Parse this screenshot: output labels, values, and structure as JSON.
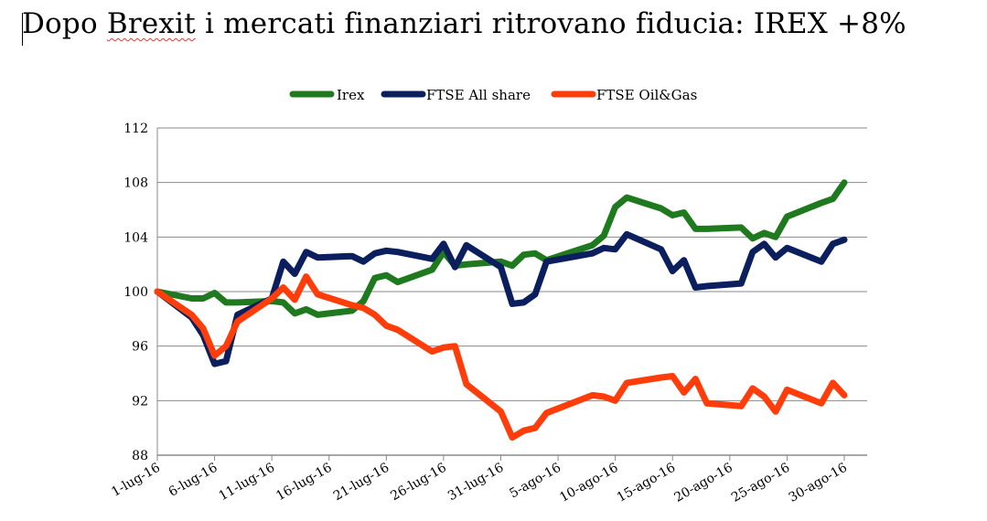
{
  "title_parts": {
    "a": "Dopo ",
    "b": "Brexit",
    "c": " i mercati finanziari ritrovano fiducia: IREX +8%"
  },
  "chart_data": {
    "type": "line",
    "title": "Dopo Brexit i mercati finanziari ritrovano fiducia: IREX +8%",
    "xlabel": "",
    "ylabel": "",
    "ylim": [
      88,
      112
    ],
    "yticks": [
      88,
      92,
      96,
      100,
      104,
      108,
      112
    ],
    "xlim": [
      0,
      62
    ],
    "xticks": [
      {
        "x": 0,
        "label": "1-lug-16"
      },
      {
        "x": 5,
        "label": "6-lug-16"
      },
      {
        "x": 10,
        "label": "11-lug-16"
      },
      {
        "x": 15,
        "label": "16-lug-16"
      },
      {
        "x": 20,
        "label": "21-lug-16"
      },
      {
        "x": 25,
        "label": "26-lug-16"
      },
      {
        "x": 30,
        "label": "31-lug-16"
      },
      {
        "x": 35,
        "label": "5-ago-16"
      },
      {
        "x": 40,
        "label": "10-ago-16"
      },
      {
        "x": 45,
        "label": "15-ago-16"
      },
      {
        "x": 50,
        "label": "20-ago-16"
      },
      {
        "x": 55,
        "label": "25-ago-16"
      },
      {
        "x": 60,
        "label": "30-ago-16"
      }
    ],
    "grid": true,
    "legend": "top",
    "series": [
      {
        "name": "Irex",
        "color": "#1f7a1f",
        "x": [
          0,
          3,
          4,
          5,
          6,
          7,
          10,
          11,
          12,
          13,
          14,
          17,
          18,
          19,
          20,
          21,
          24,
          25,
          26,
          27,
          30,
          31,
          32,
          33,
          34,
          38,
          39,
          40,
          41,
          44,
          45,
          46,
          47,
          48,
          51,
          52,
          53,
          54,
          55,
          58,
          59,
          60
        ],
        "y": [
          100,
          99.5,
          99.5,
          99.9,
          99.2,
          99.2,
          99.3,
          99.2,
          98.4,
          98.7,
          98.3,
          98.6,
          99.3,
          101,
          101.2,
          100.7,
          101.6,
          102.9,
          101.9,
          102,
          102.2,
          101.9,
          102.7,
          102.8,
          102.3,
          103.4,
          104.1,
          106.2,
          106.9,
          106.1,
          105.6,
          105.8,
          104.6,
          104.6,
          104.7,
          103.9,
          104.3,
          104,
          105.5,
          106.5,
          106.8,
          108
        ]
      },
      {
        "name": "FTSE All share",
        "color": "#0b1f5e",
        "x": [
          0,
          3,
          4,
          5,
          6,
          7,
          10,
          11,
          12,
          13,
          14,
          17,
          18,
          19,
          20,
          21,
          24,
          25,
          26,
          27,
          30,
          31,
          32,
          33,
          34,
          38,
          39,
          40,
          41,
          44,
          45,
          46,
          47,
          48,
          51,
          52,
          53,
          54,
          55,
          58,
          59,
          60
        ],
        "y": [
          100,
          98.1,
          96.8,
          94.7,
          94.9,
          98.3,
          99.5,
          102.2,
          101.3,
          102.9,
          102.5,
          102.6,
          102.2,
          102.8,
          103,
          102.9,
          102.4,
          103.5,
          101.8,
          103.4,
          101.8,
          99.1,
          99.2,
          99.8,
          102.2,
          102.8,
          103.2,
          103.1,
          104.2,
          103.1,
          101.5,
          102.3,
          100.3,
          100.4,
          100.6,
          102.9,
          103.5,
          102.5,
          103.2,
          102.2,
          103.5,
          103.8
        ]
      },
      {
        "name": "FTSE Oil&Gas",
        "color": "#ff3d0a",
        "x": [
          0,
          3,
          4,
          5,
          6,
          7,
          10,
          11,
          12,
          13,
          14,
          17,
          18,
          19,
          20,
          21,
          24,
          25,
          26,
          27,
          30,
          31,
          32,
          33,
          34,
          38,
          39,
          40,
          41,
          44,
          45,
          46,
          47,
          48,
          51,
          52,
          53,
          54,
          55,
          58,
          59,
          60
        ],
        "y": [
          100,
          98.3,
          97.3,
          95.3,
          96,
          97.8,
          99.5,
          100.3,
          99.4,
          101.1,
          99.8,
          99,
          98.8,
          98.3,
          97.5,
          97.2,
          95.6,
          95.9,
          96,
          93.2,
          91.2,
          89.3,
          89.8,
          90,
          91.1,
          92.4,
          92.3,
          92,
          93.3,
          93.7,
          93.8,
          92.6,
          93.6,
          91.8,
          91.6,
          92.9,
          92.3,
          91.2,
          92.8,
          91.8,
          93.3,
          92.4
        ]
      }
    ]
  }
}
